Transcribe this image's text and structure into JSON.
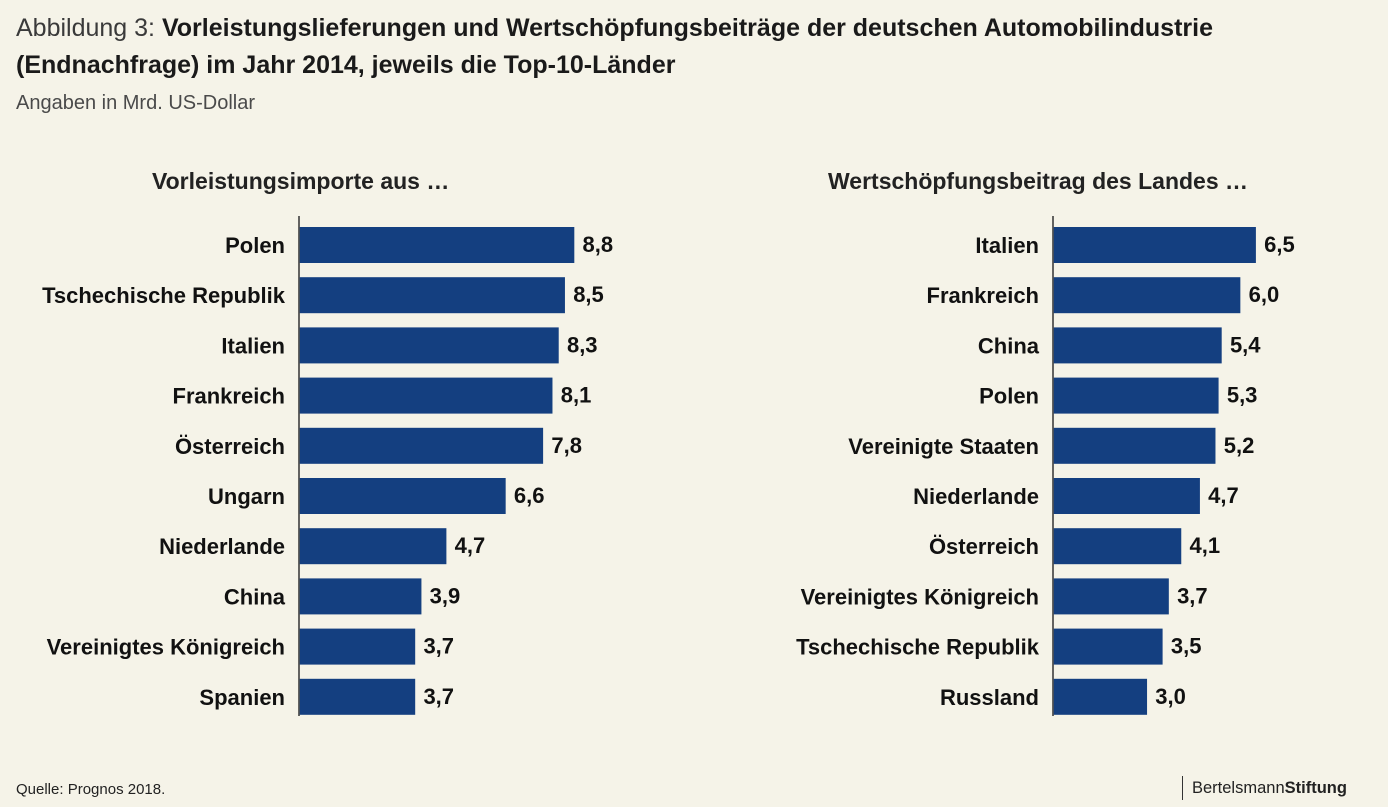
{
  "header": {
    "prefix": "Abbildung 3:",
    "title": "Vorleistungslieferungen und Wertschöpfungsbeiträge der deutschen Automobilindustrie (Endnachfrage) im Jahr 2014, jeweils die Top-10-Länder",
    "subtitle": "Angaben in Mrd. US-Dollar"
  },
  "footer": {
    "source": "Quelle: Prognos 2018.",
    "logo_light": "Bertelsmann",
    "logo_bold": "Stiftung"
  },
  "colors": {
    "bar": "#143f80",
    "background": "#f5f3e8"
  },
  "chart_data": [
    {
      "type": "bar",
      "orientation": "horizontal",
      "title": "Vorleistungsimporte aus …",
      "categories": [
        "Polen",
        "Tschechische Republik",
        "Italien",
        "Frankreich",
        "Österreich",
        "Ungarn",
        "Niederlande",
        "China",
        "Vereinigtes Königreich",
        "Spanien"
      ],
      "values": [
        8.8,
        8.5,
        8.3,
        8.1,
        7.8,
        6.6,
        4.7,
        3.9,
        3.7,
        3.7
      ],
      "value_labels": [
        "8,8",
        "8,5",
        "8,3",
        "8,1",
        "7,8",
        "6,6",
        "4,7",
        "3,9",
        "3,7",
        "3,7"
      ],
      "xlabel": "",
      "ylabel": "",
      "grid": false,
      "legend": "none"
    },
    {
      "type": "bar",
      "orientation": "horizontal",
      "title": "Wertschöpfungsbeitrag des Landes …",
      "categories": [
        "Italien",
        "Frankreich",
        "China",
        "Polen",
        "Vereinigte Staaten",
        "Niederlande",
        "Österreich",
        "Vereinigtes Königreich",
        "Tschechische Republik",
        "Russland"
      ],
      "values": [
        6.5,
        6.0,
        5.4,
        5.3,
        5.2,
        4.7,
        4.1,
        3.7,
        3.5,
        3.0
      ],
      "value_labels": [
        "6,5",
        "6,0",
        "5,4",
        "5,3",
        "5,2",
        "4,7",
        "4,1",
        "3,7",
        "3,5",
        "3,0"
      ],
      "xlabel": "",
      "ylabel": "",
      "grid": false,
      "legend": "none"
    }
  ]
}
